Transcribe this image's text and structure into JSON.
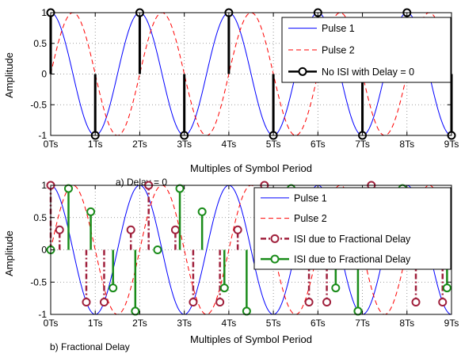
{
  "chart_data": [
    {
      "type": "line",
      "caption": "a) Delay = 0",
      "xlabel": "Multiples of Symbol Period",
      "ylabel": "Amplitude",
      "xlim": [
        0,
        9
      ],
      "ylim": [
        -1,
        1
      ],
      "x_ticks": [
        0,
        1,
        2,
        3,
        4,
        5,
        6,
        7,
        8,
        9
      ],
      "x_tick_labels": [
        "0Ts",
        "1Ts",
        "2Ts",
        "3Ts",
        "4Ts",
        "5Ts",
        "6Ts",
        "7Ts",
        "8Ts",
        "9Ts"
      ],
      "y_ticks": [
        -1,
        -0.5,
        0,
        0.5,
        1
      ],
      "y_tick_labels": [
        "-1",
        "-0.5",
        "0",
        "0.5",
        "1"
      ],
      "grid": true,
      "legend_position": "top-right",
      "series": [
        {
          "name": "Pulse 1",
          "kind": "line",
          "color": "#0000ff",
          "dash": "solid",
          "function": "cos(pi*x)",
          "x": [
            0,
            0.5,
            1,
            1.5,
            2,
            2.5,
            3,
            3.5,
            4,
            4.5,
            5,
            5.5,
            6,
            6.5,
            7,
            7.5,
            8,
            8.5,
            9
          ],
          "values": [
            1,
            0,
            -1,
            0,
            1,
            0,
            -1,
            0,
            1,
            0,
            -1,
            0,
            1,
            0,
            -1,
            0,
            1,
            0,
            -1
          ]
        },
        {
          "name": "Pulse 2",
          "kind": "line",
          "color": "#ff0000",
          "dash": "dashed",
          "function": "cos(pi*(x-0.5))",
          "x": [
            0,
            0.5,
            1,
            1.5,
            2,
            2.5,
            3,
            3.5,
            4,
            4.5,
            5,
            5.5,
            6,
            6.5,
            7,
            7.5,
            8,
            8.5,
            9
          ],
          "values": [
            0,
            1,
            0,
            -1,
            0,
            1,
            0,
            -1,
            0,
            1,
            0,
            -1,
            0,
            1,
            0,
            -1,
            0,
            1,
            0
          ]
        },
        {
          "name": "No ISI with Delay = 0",
          "kind": "stem",
          "color": "#000000",
          "dash": "solid",
          "x": [
            0,
            1,
            2,
            3,
            4,
            5,
            6,
            7,
            8,
            9
          ],
          "values": [
            1,
            -1,
            1,
            -1,
            1,
            -1,
            1,
            -1,
            1,
            -1
          ]
        }
      ]
    },
    {
      "type": "line",
      "caption": "b) Fractional Delay",
      "xlabel": "Multiples of Symbol Period",
      "ylabel": "Amplitude",
      "xlim": [
        0,
        9
      ],
      "ylim": [
        -1,
        1
      ],
      "x_ticks": [
        0,
        1,
        2,
        3,
        4,
        5,
        6,
        7,
        8,
        9
      ],
      "x_tick_labels": [
        "0Ts",
        "1Ts",
        "2Ts",
        "3Ts",
        "4Ts",
        "5Ts",
        "6Ts",
        "7Ts",
        "8Ts",
        "9Ts"
      ],
      "y_ticks": [
        -1,
        -0.5,
        0,
        0.5,
        1
      ],
      "y_tick_labels": [
        "-1",
        "-0.5",
        "0",
        "0.5",
        "1"
      ],
      "grid": true,
      "legend_position": "top-right",
      "series": [
        {
          "name": "Pulse 1",
          "kind": "line",
          "color": "#0000ff",
          "dash": "solid",
          "function": "cos(pi*x)",
          "x": [
            0,
            0.5,
            1,
            1.5,
            2,
            2.5,
            3,
            3.5,
            4,
            4.5,
            5,
            5.5,
            6,
            6.5,
            7,
            7.5,
            8,
            8.5,
            9
          ],
          "values": [
            1,
            0,
            -1,
            0,
            1,
            0,
            -1,
            0,
            1,
            0,
            -1,
            0,
            1,
            0,
            -1,
            0,
            1,
            0,
            -1
          ]
        },
        {
          "name": "Pulse 2",
          "kind": "line",
          "color": "#ff0000",
          "dash": "dashed",
          "function": "cos(pi*(x-0.5))",
          "x": [
            0,
            0.5,
            1,
            1.5,
            2,
            2.5,
            3,
            3.5,
            4,
            4.5,
            5,
            5.5,
            6,
            6.5,
            7,
            7.5,
            8,
            8.5,
            9
          ],
          "values": [
            0,
            1,
            0,
            -1,
            0,
            1,
            0,
            -1,
            0,
            1,
            0,
            -1,
            0,
            1,
            0,
            -1,
            0,
            1,
            0
          ]
        },
        {
          "name": "ISI due to Fractional Delay",
          "kind": "stem",
          "color": "#a0203c",
          "dash": "dashdot",
          "x": [
            0,
            0.2,
            0.8,
            1.2,
            1.8,
            2.2,
            2.8,
            3.2,
            3.8,
            4.2,
            4.8,
            5.2,
            5.8,
            6.2,
            6.8,
            7.2,
            7.8,
            8.2,
            8.8
          ],
          "values": [
            1,
            0.31,
            -0.81,
            -0.81,
            0.31,
            1,
            0.31,
            -0.81,
            -0.81,
            0.31,
            1,
            0.31,
            -0.81,
            -0.81,
            0.31,
            1,
            0.31,
            -0.81,
            -0.81
          ]
        },
        {
          "name": "ISI due to Fractional Delay",
          "kind": "stem",
          "color": "#1a8c1a",
          "dash": "solid",
          "x": [
            0,
            0.4,
            0.9,
            1.4,
            1.9,
            2.4,
            2.9,
            3.4,
            3.9,
            4.4,
            4.9,
            5.4,
            5.9,
            6.4,
            6.9,
            7.4,
            7.9,
            8.4,
            8.9
          ],
          "values": [
            0,
            0.95,
            0.59,
            -0.59,
            -0.95,
            0,
            0.95,
            0.59,
            -0.59,
            -0.95,
            0,
            0.95,
            0.59,
            -0.59,
            -0.95,
            0,
            0.95,
            0.59,
            -0.59
          ]
        }
      ]
    }
  ]
}
